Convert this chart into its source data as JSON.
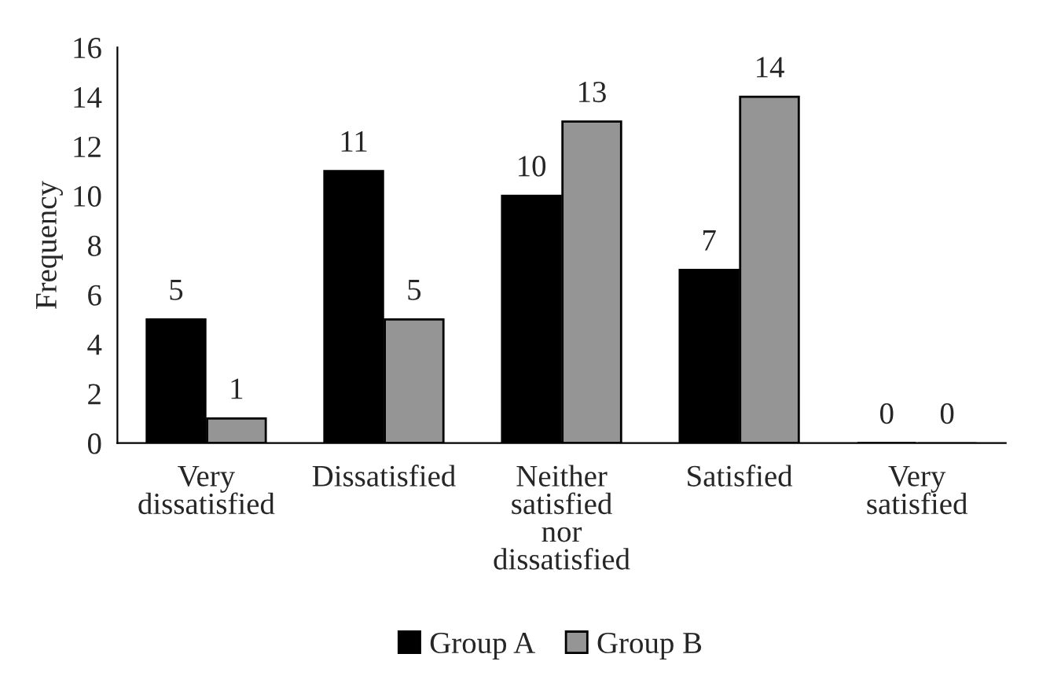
{
  "chart_data": {
    "type": "bar",
    "ylabel": "Frequency",
    "categories": [
      "Very\ndissatisfied",
      "Dissatisfied",
      "Neither\nsatisfied\nnor\ndissatisfied",
      "Satisfied",
      "Very\nsatisfied"
    ],
    "series": [
      {
        "name": "Group A",
        "color": "#000000",
        "values": [
          5,
          11,
          10,
          7,
          0
        ]
      },
      {
        "name": "Group B",
        "color": "#959595",
        "values": [
          1,
          5,
          13,
          14,
          0
        ]
      }
    ],
    "ylim": [
      0,
      16
    ],
    "yticks": [
      0,
      2,
      4,
      6,
      8,
      10,
      12,
      14,
      16
    ],
    "grid": false,
    "legend": "bottom",
    "data_labels": true
  }
}
